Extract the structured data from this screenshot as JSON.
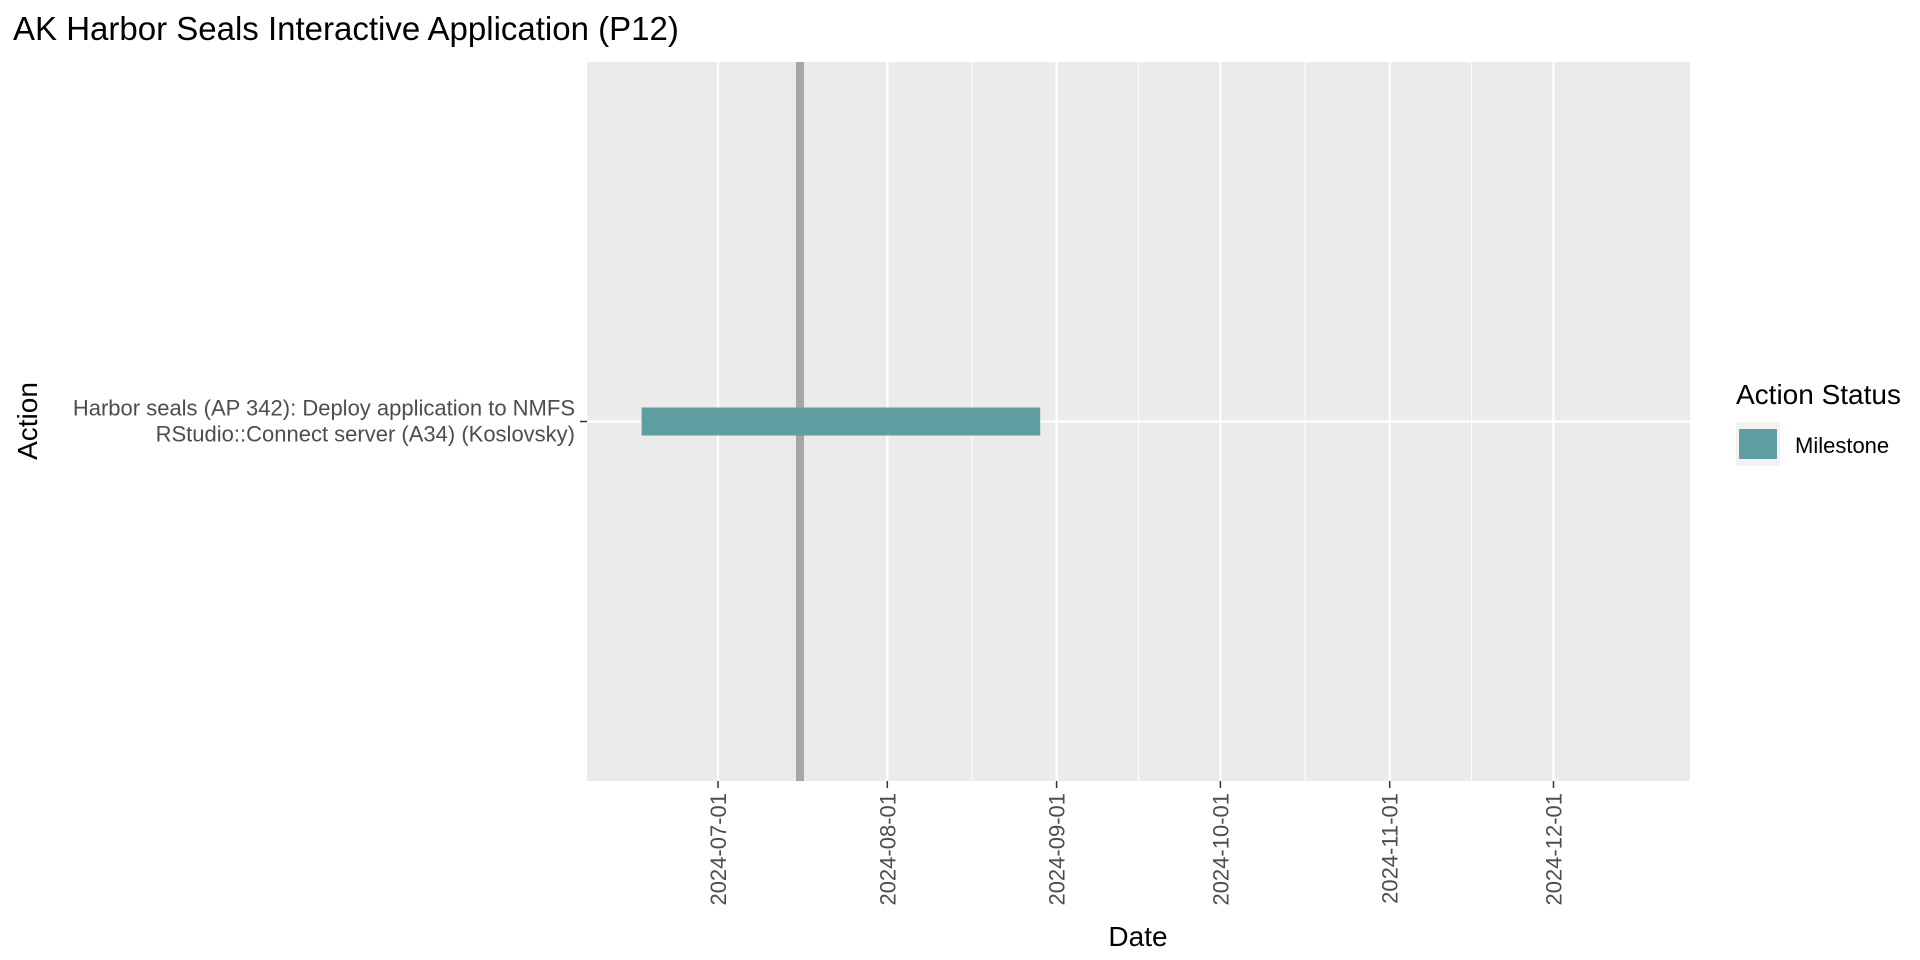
{
  "chart_data": {
    "type": "gantt",
    "title": "AK Harbor Seals Interactive Application (P12)",
    "xlabel": "Date",
    "ylabel": "Action",
    "x_axis": {
      "scale": "date",
      "range": [
        "2024-06-07",
        "2024-12-26"
      ],
      "ticks": [
        "2024-07-01",
        "2024-08-01",
        "2024-09-01",
        "2024-10-01",
        "2024-11-01",
        "2024-12-01"
      ]
    },
    "y_axis": {
      "categories": [
        "Harbor seals (AP 342): Deploy application to NMFS\nRStudio::Connect server (A34) (Koslovsky)"
      ]
    },
    "tasks": [
      {
        "category_index": 0,
        "start": "2024-06-17",
        "end": "2024-08-29",
        "status": "Milestone"
      }
    ],
    "reference_line": {
      "date": "2024-07-16",
      "color": "#a6a6a6"
    },
    "legend": {
      "title": "Action Status",
      "position": "right",
      "items": [
        {
          "label": "Milestone",
          "color": "#5f9ea0"
        }
      ]
    },
    "grid": true,
    "panel_background": "#ebebeb",
    "grid_color": "#ffffff"
  }
}
